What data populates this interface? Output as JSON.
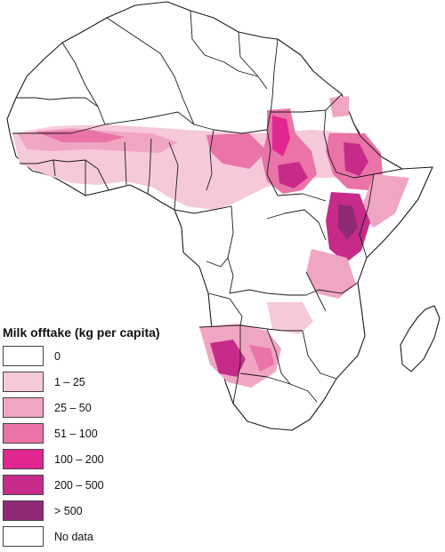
{
  "legend": {
    "title": "Milk offtake (kg per capita)",
    "classes": [
      {
        "label": "0",
        "color": "#ffffff"
      },
      {
        "label": "1 – 25",
        "color": "#f6c9da"
      },
      {
        "label": "25 – 50",
        "color": "#f0a6c3"
      },
      {
        "label": "51 – 100",
        "color": "#ea73a8"
      },
      {
        "label": "100 – 200",
        "color": "#e0268f"
      },
      {
        "label": "200 – 500",
        "color": "#c72b8a"
      },
      {
        "label": "> 500",
        "color": "#8f2a74"
      },
      {
        "label": "No data",
        "color": "#ffffff"
      }
    ]
  }
}
